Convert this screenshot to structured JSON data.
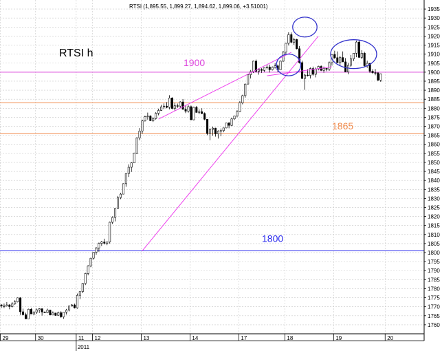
{
  "chart_data": {
    "type": "candlestick",
    "header": "RTSI (1,895.55, 1,899.27, 1,894.62, 1,899.06, +3.51001)",
    "title": "RTSI h",
    "y_axis": {
      "min": 1755,
      "max": 1940,
      "step": 5,
      "position": "right",
      "tick_labels": [
        "1760",
        "1765",
        "1770",
        "1775",
        "1780",
        "1785",
        "1790",
        "1795",
        "1800",
        "1805",
        "1810",
        "1815",
        "1820",
        "1825",
        "1830",
        "1835",
        "1840",
        "1845",
        "1850",
        "1855",
        "1860",
        "1865",
        "1870",
        "1875",
        "1880",
        "1885",
        "1890",
        "1895",
        "1900",
        "1905",
        "1910",
        "1915",
        "1920",
        "1925",
        "1930",
        "1935"
      ]
    },
    "x_axis": {
      "tick_labels": [
        "29",
        "30",
        "11",
        "12",
        "13",
        "14",
        "17",
        "18",
        "19",
        "20"
      ],
      "year_label": "2011",
      "session_count": 156,
      "day_breaks": [
        0,
        13,
        28,
        34,
        52,
        70,
        88,
        105,
        123,
        142
      ]
    },
    "grid": true,
    "levels": [
      {
        "value": 1900,
        "label": "1900",
        "color": "#dd44dd"
      },
      {
        "value": 1883,
        "label": "",
        "color": "#f08a4b"
      },
      {
        "value": 1866,
        "label": "1865",
        "color": "#f08a4b"
      },
      {
        "value": 1801,
        "label": "1800",
        "color": "#2a2aee"
      }
    ],
    "trend_lines": [
      {
        "color": "#ee44ee",
        "from": [
          58,
          1874
        ],
        "to": [
          107,
          1911
        ]
      },
      {
        "color": "#ee44ee",
        "from": [
          52,
          1801
        ],
        "to": [
          117,
          1920
        ]
      },
      {
        "color": "#ee44ee",
        "from": [
          98,
          1898
        ],
        "to": [
          122,
          1903
        ]
      }
    ],
    "ellipses": [
      {
        "color": "#3333cc",
        "center": [
          106,
          1904
        ],
        "rx_sessions": 4.5,
        "ry_points": 6
      },
      {
        "color": "#3333cc",
        "center": [
          112,
          1925
        ],
        "rx_sessions": 4.5,
        "ry_points": 5.5
      },
      {
        "color": "#3333cc",
        "center": [
          130,
          1910
        ],
        "rx_sessions": 8.5,
        "ry_points": 8
      }
    ],
    "candles_note": "OHLC per hourly session",
    "candles": [
      [
        1771.0,
        1771.4,
        1769.3,
        1770.4
      ],
      [
        1770.4,
        1771.8,
        1769.2,
        1770.4
      ],
      [
        1770.4,
        1772.6,
        1770.1,
        1771.0
      ],
      [
        1771.0,
        1771.4,
        1768.6,
        1770.1
      ],
      [
        1770.1,
        1772.5,
        1769.6,
        1771.6
      ],
      [
        1771.6,
        1773.6,
        1771.0,
        1772.7
      ],
      [
        1772.7,
        1775.1,
        1772.4,
        1774.9
      ],
      [
        1774.9,
        1775.2,
        1765.5,
        1767.2
      ],
      [
        1767.2,
        1768.9,
        1765.2,
        1765.6
      ],
      [
        1765.6,
        1766.7,
        1763.2,
        1763.3
      ],
      [
        1763.3,
        1768.9,
        1763.2,
        1768.6
      ],
      [
        1768.6,
        1769.3,
        1766.0,
        1766.0
      ],
      [
        1766.0,
        1767.5,
        1765.4,
        1767.0
      ],
      [
        1767.0,
        1769.0,
        1766.0,
        1768.3
      ],
      [
        1768.3,
        1769.2,
        1766.5,
        1768.9
      ],
      [
        1768.9,
        1769.0,
        1765.1,
        1767.1
      ],
      [
        1767.1,
        1767.4,
        1766.6,
        1766.7
      ],
      [
        1766.7,
        1768.9,
        1766.4,
        1768.1
      ],
      [
        1768.1,
        1768.4,
        1765.4,
        1765.4
      ],
      [
        1765.4,
        1767.4,
        1765.3,
        1766.5
      ],
      [
        1766.5,
        1766.7,
        1764.9,
        1765.2
      ],
      [
        1765.2,
        1767.3,
        1765.2,
        1766.7
      ],
      [
        1766.7,
        1767.5,
        1763.9,
        1764.4
      ],
      [
        1764.4,
        1767.1,
        1763.3,
        1767.0
      ],
      [
        1767.0,
        1768.8,
        1765.7,
        1768.1
      ],
      [
        1768.1,
        1770.6,
        1767.4,
        1770.4
      ],
      [
        1770.4,
        1771.4,
        1770.1,
        1771.0
      ],
      [
        1771.0,
        1771.7,
        1769.0,
        1769.4
      ],
      [
        1769.4,
        1777.3,
        1768.9,
        1776.3
      ],
      [
        1776.3,
        1778.4,
        1774.2,
        1778.4
      ],
      [
        1778.4,
        1783.2,
        1777.5,
        1782.9
      ],
      [
        1782.9,
        1788.8,
        1782.0,
        1788.4
      ],
      [
        1788.4,
        1793.1,
        1787.4,
        1792.6
      ],
      [
        1792.6,
        1797.1,
        1791.9,
        1796.9
      ],
      [
        1796.9,
        1800.2,
        1796.1,
        1800.2
      ],
      [
        1800.2,
        1803.1,
        1798.8,
        1802.6
      ],
      [
        1802.6,
        1805.6,
        1800.5,
        1805.1
      ],
      [
        1805.1,
        1806.5,
        1803.7,
        1805.9
      ],
      [
        1805.9,
        1807.7,
        1804.5,
        1805.2
      ],
      [
        1805.2,
        1806.1,
        1804.1,
        1805.9
      ],
      [
        1805.9,
        1817.2,
        1805.0,
        1816.8
      ],
      [
        1816.8,
        1820.1,
        1815.9,
        1819.5
      ],
      [
        1819.5,
        1824.5,
        1817.3,
        1824.5
      ],
      [
        1824.5,
        1831.4,
        1824.3,
        1830.5
      ],
      [
        1830.5,
        1833.1,
        1829.6,
        1832.4
      ],
      [
        1832.4,
        1838.4,
        1832.3,
        1838.2
      ],
      [
        1838.2,
        1844.1,
        1836.5,
        1843.8
      ],
      [
        1843.8,
        1848.9,
        1841.9,
        1847.3
      ],
      [
        1847.3,
        1850.1,
        1844.7,
        1849.7
      ],
      [
        1849.7,
        1855.4,
        1849.6,
        1855.2
      ],
      [
        1855.2,
        1864.0,
        1854.6,
        1863.6
      ],
      [
        1863.6,
        1869.0,
        1862.3,
        1867.4
      ],
      [
        1867.4,
        1873.7,
        1865.8,
        1873.0
      ],
      [
        1873.0,
        1875.9,
        1872.6,
        1875.3
      ],
      [
        1875.3,
        1877.6,
        1873.7,
        1875.7
      ],
      [
        1875.7,
        1876.1,
        1873.0,
        1873.1
      ],
      [
        1873.1,
        1875.0,
        1872.4,
        1874.3
      ],
      [
        1874.3,
        1877.8,
        1873.7,
        1877.2
      ],
      [
        1877.2,
        1879.8,
        1876.1,
        1878.8
      ],
      [
        1878.8,
        1881.9,
        1878.6,
        1880.8
      ],
      [
        1880.8,
        1882.7,
        1879.5,
        1881.2
      ],
      [
        1881.2,
        1883.4,
        1880.0,
        1880.5
      ],
      [
        1880.5,
        1887.2,
        1879.4,
        1885.7
      ],
      [
        1885.7,
        1886.1,
        1879.4,
        1879.9
      ],
      [
        1879.9,
        1883.1,
        1878.7,
        1881.4
      ],
      [
        1881.4,
        1882.6,
        1880.2,
        1881.2
      ],
      [
        1881.2,
        1883.9,
        1880.0,
        1883.5
      ],
      [
        1883.5,
        1885.1,
        1879.2,
        1879.4
      ],
      [
        1879.4,
        1881.8,
        1877.3,
        1878.4
      ],
      [
        1878.4,
        1881.7,
        1877.6,
        1880.9
      ],
      [
        1880.9,
        1881.5,
        1873.4,
        1873.6
      ],
      [
        1873.6,
        1880.9,
        1873.3,
        1880.5
      ],
      [
        1880.5,
        1881.3,
        1877.5,
        1877.7
      ],
      [
        1877.7,
        1879.4,
        1876.7,
        1878.1
      ],
      [
        1878.1,
        1880.0,
        1876.7,
        1877.1
      ],
      [
        1877.1,
        1877.7,
        1873.4,
        1873.9
      ],
      [
        1873.9,
        1874.0,
        1865.1,
        1866.0
      ],
      [
        1866.0,
        1868.8,
        1862.3,
        1868.3
      ],
      [
        1868.3,
        1869.8,
        1864.8,
        1869.0
      ],
      [
        1869.0,
        1869.2,
        1864.3,
        1865.8
      ],
      [
        1865.8,
        1867.8,
        1863.2,
        1867.4
      ],
      [
        1867.4,
        1868.8,
        1864.5,
        1867.6
      ],
      [
        1867.6,
        1869.3,
        1866.7,
        1869.1
      ],
      [
        1869.1,
        1871.9,
        1868.9,
        1871.8
      ],
      [
        1871.8,
        1872.4,
        1868.9,
        1870.5
      ],
      [
        1870.5,
        1874.7,
        1870.1,
        1874.1
      ],
      [
        1874.1,
        1875.9,
        1873.5,
        1875.7
      ],
      [
        1875.7,
        1878.9,
        1875.0,
        1878.1
      ],
      [
        1878.1,
        1884.0,
        1877.8,
        1883.0
      ],
      [
        1883.0,
        1887.5,
        1882.2,
        1887.0
      ],
      [
        1887.0,
        1893.7,
        1885.9,
        1893.4
      ],
      [
        1893.4,
        1899.0,
        1893.2,
        1898.6
      ],
      [
        1898.6,
        1901.2,
        1896.5,
        1900.3
      ],
      [
        1900.3,
        1906.4,
        1899.5,
        1906.1
      ],
      [
        1906.1,
        1907.0,
        1899.8,
        1900.5
      ],
      [
        1900.5,
        1902.2,
        1898.6,
        1901.5
      ],
      [
        1901.5,
        1902.2,
        1899.6,
        1901.0
      ],
      [
        1901.0,
        1902.6,
        1900.1,
        1902.5
      ],
      [
        1902.5,
        1903.9,
        1901.5,
        1902.9
      ],
      [
        1902.9,
        1904.2,
        1899.8,
        1901.4
      ],
      [
        1901.4,
        1903.2,
        1900.9,
        1902.7
      ],
      [
        1902.7,
        1904.9,
        1902.0,
        1903.5
      ],
      [
        1903.5,
        1904.3,
        1900.1,
        1901.3
      ],
      [
        1901.3,
        1906.5,
        1901.2,
        1906.1
      ],
      [
        1906.1,
        1911.7,
        1905.6,
        1911.1
      ],
      [
        1911.1,
        1916.3,
        1909.5,
        1916.0
      ],
      [
        1916.0,
        1922.1,
        1914.8,
        1920.8
      ],
      [
        1920.8,
        1922.0,
        1916.0,
        1916.6
      ],
      [
        1916.6,
        1919.1,
        1915.1,
        1918.1
      ],
      [
        1918.1,
        1918.5,
        1912.6,
        1913.0
      ],
      [
        1913.0,
        1914.5,
        1904.8,
        1905.3
      ],
      [
        1905.3,
        1906.4,
        1896.3,
        1896.5
      ],
      [
        1896.5,
        1899.1,
        1890.2,
        1898.4
      ],
      [
        1898.4,
        1901.7,
        1897.6,
        1898.2
      ],
      [
        1898.2,
        1902.6,
        1896.5,
        1902.0
      ],
      [
        1902.0,
        1903.1,
        1898.1,
        1898.8
      ],
      [
        1898.8,
        1902.6,
        1897.1,
        1901.8
      ],
      [
        1901.8,
        1903.6,
        1901.0,
        1903.2
      ],
      [
        1903.2,
        1903.8,
        1900.6,
        1901.0
      ],
      [
        1901.0,
        1903.1,
        1899.7,
        1902.1
      ],
      [
        1902.1,
        1902.2,
        1900.5,
        1901.6
      ],
      [
        1901.6,
        1905.9,
        1900.7,
        1905.3
      ],
      [
        1905.3,
        1910.0,
        1903.6,
        1909.8
      ],
      [
        1909.8,
        1911.9,
        1907.3,
        1908.0
      ],
      [
        1908.0,
        1911.5,
        1905.1,
        1905.3
      ],
      [
        1905.3,
        1909.0,
        1903.7,
        1908.1
      ],
      [
        1908.1,
        1911.5,
        1905.6,
        1905.7
      ],
      [
        1905.7,
        1907.8,
        1900.0,
        1900.1
      ],
      [
        1900.1,
        1905.2,
        1898.8,
        1903.8
      ],
      [
        1903.8,
        1909.5,
        1903.0,
        1907.4
      ],
      [
        1907.4,
        1910.6,
        1906.2,
        1910.5
      ],
      [
        1910.5,
        1917.4,
        1908.3,
        1916.7
      ],
      [
        1916.7,
        1917.8,
        1907.9,
        1908.2
      ],
      [
        1908.2,
        1912.2,
        1907.2,
        1910.5
      ],
      [
        1910.5,
        1911.3,
        1902.8,
        1903.6
      ],
      [
        1903.6,
        1906.4,
        1902.4,
        1904.9
      ],
      [
        1904.9,
        1905.1,
        1899.5,
        1900.5
      ],
      [
        1900.5,
        1901.6,
        1899.1,
        1899.7
      ],
      [
        1899.7,
        1901.7,
        1898.3,
        1899.6
      ],
      [
        1899.6,
        1900.0,
        1895.0,
        1895.6
      ],
      [
        1895.6,
        1899.3,
        1894.6,
        1899.1
      ]
    ]
  }
}
